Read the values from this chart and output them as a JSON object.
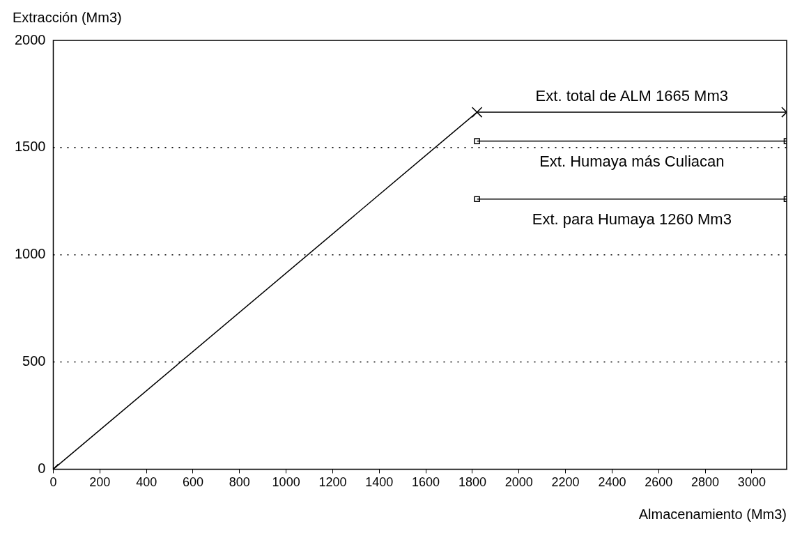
{
  "chart_data": {
    "type": "line",
    "xlabel": "Almacenamiento (Mm3)",
    "ylabel": "Extracción (Mm3)",
    "xlim": [
      0,
      3150
    ],
    "xticks": [
      0,
      200,
      400,
      600,
      800,
      1000,
      1200,
      1400,
      1600,
      1800,
      2000,
      2200,
      2400,
      2600,
      2800,
      3000
    ],
    "ylim": [
      0,
      2000
    ],
    "yticks": [
      0,
      500,
      1000,
      1500,
      2000
    ],
    "grid": "y",
    "legend": false,
    "line_style": "solid",
    "series": [
      {
        "color": "#000000",
        "x": [
          0,
          1820,
          3150
        ],
        "values": [
          0,
          1665,
          1665
        ],
        "marker": "cross"
      },
      {
        "color": "#000000",
        "x": [
          1820,
          3150
        ],
        "values": [
          1530,
          1530
        ],
        "marker": "square"
      },
      {
        "color": "#000000",
        "x": [
          1820,
          3150
        ],
        "values": [
          1260,
          1260
        ],
        "marker": "square"
      }
    ],
    "annotations": [
      "Ext. total de ALM 1665 Mm3",
      "Ext. Humaya más Culiacan",
      "Ext. para Humaya 1260 Mm3"
    ]
  }
}
